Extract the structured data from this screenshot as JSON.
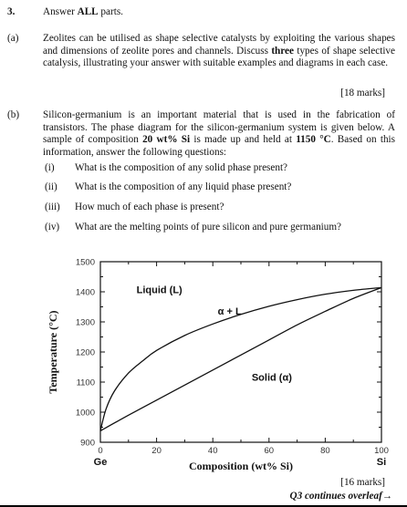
{
  "question": {
    "number": "3.",
    "instruction_prefix": "Answer ",
    "instruction_bold": "ALL",
    "instruction_suffix": " parts."
  },
  "part_a": {
    "label": "(a)",
    "text_1": "Zeolites can be utilised as shape selective catalysts by exploiting the various shapes and dimensions of zeolite pores and channels.  Discuss ",
    "text_bold": "three",
    "text_2": " types of shape selective catalysis, illustrating your answer with suitable examples and diagrams in each case.",
    "marks": "[18 marks]"
  },
  "part_b": {
    "label": "(b)",
    "text_1": "Silicon-germanium is an important material that is used in the fabrication of transistors. The phase diagram for the silicon-germanium system is given below.  A sample of composition ",
    "bold_1": "20 wt% Si",
    "text_2": " is made up and held at ",
    "bold_2": "1150 °C",
    "text_3": ".  Based on this information, answer the following questions:",
    "subquestions": [
      {
        "label": "(i)",
        "text": "What is the composition of any solid phase present?"
      },
      {
        "label": "(ii)",
        "text": "What is the composition of any liquid phase present?"
      },
      {
        "label": "(iii)",
        "text": "How much of each phase is present?"
      },
      {
        "label": "(iv)",
        "text": "What are the melting points of pure silicon and pure germanium?"
      }
    ],
    "marks": "[16 marks]"
  },
  "continues": "Q3 continues overleaf→",
  "chart_data": {
    "type": "line",
    "xlabel": "Composition (wt% Si)",
    "ylabel": "Temperature (°C)",
    "xlim": [
      0,
      100
    ],
    "ylim": [
      900,
      1500
    ],
    "x_ticks": [
      "0",
      "20",
      "40",
      "60",
      "80",
      "100"
    ],
    "y_ticks": [
      "900",
      "1000",
      "1100",
      "1200",
      "1300",
      "1400",
      "1500"
    ],
    "x_end_labels": {
      "left": "Ge",
      "right": "Si"
    },
    "region_labels": [
      "Liquid (L)",
      "α + L",
      "Solid (α)"
    ],
    "grid": false,
    "series": [
      {
        "role": "liquidus",
        "x": [
          0,
          2,
          5,
          10,
          15,
          20,
          30,
          40,
          50,
          60,
          70,
          80,
          90,
          100
        ],
        "y": [
          938,
          1010,
          1070,
          1130,
          1170,
          1205,
          1255,
          1293,
          1325,
          1352,
          1374,
          1392,
          1405,
          1414
        ]
      },
      {
        "role": "solidus",
        "x": [
          0,
          10,
          20,
          30,
          40,
          50,
          60,
          70,
          80,
          90,
          100
        ],
        "y": [
          938,
          990,
          1040,
          1090,
          1140,
          1190,
          1240,
          1290,
          1335,
          1378,
          1414
        ]
      }
    ]
  }
}
